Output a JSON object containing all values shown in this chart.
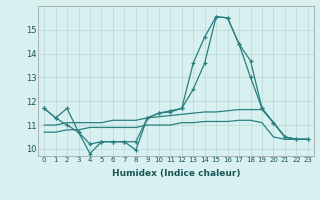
{
  "xlabel": "Humidex (Indice chaleur)",
  "x": [
    0,
    1,
    2,
    3,
    4,
    5,
    6,
    7,
    8,
    9,
    10,
    11,
    12,
    13,
    14,
    15,
    16,
    17,
    18,
    19,
    20,
    21,
    22,
    23
  ],
  "line1": [
    11.7,
    11.3,
    11.7,
    10.7,
    10.2,
    10.3,
    10.3,
    10.3,
    10.3,
    11.3,
    11.5,
    11.6,
    11.7,
    13.6,
    14.7,
    15.55,
    15.5,
    14.4,
    13.7,
    11.7,
    11.1,
    10.5,
    10.4,
    10.4
  ],
  "line2": [
    11.7,
    11.3,
    11.0,
    10.7,
    9.8,
    10.3,
    10.3,
    10.3,
    9.95,
    11.3,
    11.5,
    11.55,
    11.7,
    12.5,
    13.6,
    15.55,
    15.5,
    14.4,
    13.0,
    11.7,
    11.1,
    10.5,
    10.4,
    10.4
  ],
  "line3": [
    11.0,
    11.0,
    11.1,
    11.1,
    11.1,
    11.1,
    11.2,
    11.2,
    11.2,
    11.3,
    11.35,
    11.4,
    11.45,
    11.5,
    11.55,
    11.55,
    11.6,
    11.65,
    11.65,
    11.65,
    11.1,
    10.5,
    10.4,
    10.4
  ],
  "line4": [
    10.7,
    10.7,
    10.8,
    10.8,
    10.9,
    10.9,
    10.9,
    10.9,
    10.9,
    11.0,
    11.0,
    11.0,
    11.1,
    11.1,
    11.15,
    11.15,
    11.15,
    11.2,
    11.2,
    11.1,
    10.5,
    10.4,
    10.4,
    10.4
  ],
  "color": "#2a7f7f",
  "bg_color": "#d8f0f0",
  "grid_color": "#b8d8d8",
  "ylim": [
    9.7,
    16.0
  ],
  "yticks": [
    10,
    11,
    12,
    13,
    14,
    15
  ],
  "xticks": [
    0,
    1,
    2,
    3,
    4,
    5,
    6,
    7,
    8,
    9,
    10,
    11,
    12,
    13,
    14,
    15,
    16,
    17,
    18,
    19,
    20,
    21,
    22,
    23
  ]
}
